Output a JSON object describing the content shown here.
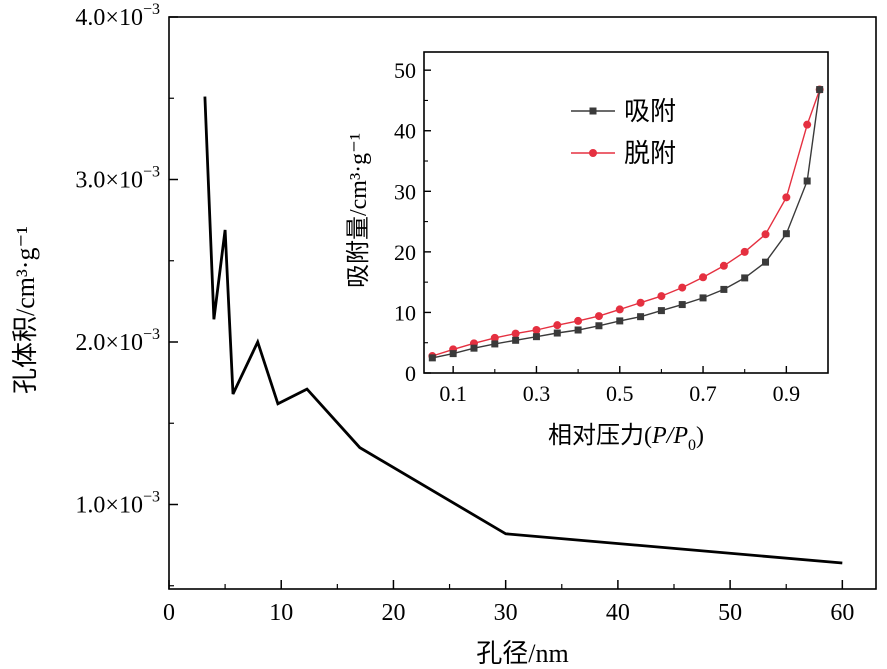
{
  "chart_data": [
    {
      "type": "line",
      "xlabel": "孔径/nm",
      "ylabel": "孔体积/cm³·g⁻¹",
      "xlim": [
        0,
        63
      ],
      "ylim": [
        0.00048,
        0.004
      ],
      "x_ticks": [
        "0",
        "10",
        "20",
        "30",
        "40",
        "50",
        "60"
      ],
      "y_ticks": [
        {
          "value": 0.001,
          "mantissa": "1.0",
          "unit": "×10",
          "exp": "−3"
        },
        {
          "value": 0.002,
          "mantissa": "2.0",
          "unit": "×10",
          "exp": "−3"
        },
        {
          "value": 0.003,
          "mantissa": "3.0",
          "unit": "×10",
          "exp": "−3"
        },
        {
          "value": 0.004,
          "mantissa": "4.0",
          "unit": "×10",
          "exp": "−3"
        }
      ],
      "series": [
        {
          "color": "#000000",
          "x": [
            3.2,
            4.0,
            5.0,
            5.7,
            7.9,
            9.7,
            12.3,
            17.0,
            30.0,
            60.0
          ],
          "y": [
            0.00351,
            0.00214,
            0.00269,
            0.00168,
            0.002,
            0.00162,
            0.00171,
            0.00135,
            0.00082,
            0.00064
          ]
        }
      ]
    },
    {
      "type": "line",
      "xlabel": "相对压力(P/P0)",
      "ylabel": "吸附量/cm³·g⁻¹",
      "xlim": [
        0.03,
        1.0
      ],
      "ylim": [
        0,
        53
      ],
      "x_ticks": [
        "0.1",
        "0.3",
        "0.5",
        "0.7",
        "0.9"
      ],
      "y_ticks": [
        "0",
        "10",
        "20",
        "30",
        "40",
        "50"
      ],
      "legend_position": "top-left",
      "series": [
        {
          "name": "吸附",
          "color": "#3a3a3a",
          "marker": "square",
          "x": [
            0.05,
            0.1,
            0.15,
            0.2,
            0.25,
            0.3,
            0.35,
            0.4,
            0.45,
            0.5,
            0.55,
            0.6,
            0.65,
            0.7,
            0.75,
            0.8,
            0.85,
            0.9,
            0.95,
            0.98
          ],
          "y": [
            2.5,
            3.2,
            4.1,
            4.8,
            5.4,
            6.0,
            6.6,
            7.1,
            7.8,
            8.6,
            9.3,
            10.3,
            11.3,
            12.4,
            13.8,
            15.7,
            18.3,
            23.0,
            31.7,
            46.8
          ]
        },
        {
          "name": "脱附",
          "color": "#e53040",
          "marker": "circle",
          "x": [
            0.05,
            0.1,
            0.15,
            0.2,
            0.25,
            0.3,
            0.35,
            0.4,
            0.45,
            0.5,
            0.55,
            0.6,
            0.65,
            0.7,
            0.75,
            0.8,
            0.85,
            0.9,
            0.95,
            0.98
          ],
          "y": [
            2.8,
            3.9,
            4.9,
            5.8,
            6.5,
            7.1,
            7.9,
            8.6,
            9.4,
            10.5,
            11.6,
            12.7,
            14.1,
            15.8,
            17.7,
            20.0,
            22.9,
            29.0,
            41.0,
            46.8
          ]
        }
      ]
    }
  ]
}
